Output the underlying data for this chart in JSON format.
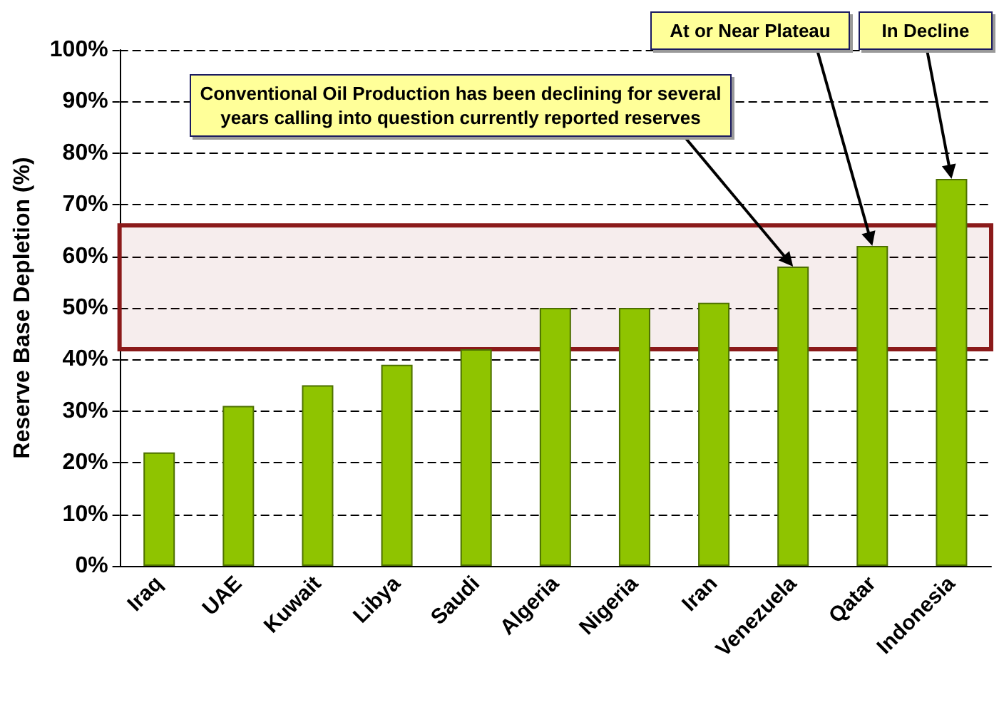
{
  "chart_data": {
    "type": "bar",
    "ylabel": "Reserve Base Depletion (%)",
    "categories": [
      "Iraq",
      "UAE",
      "Kuwait",
      "Libya",
      "Saudi",
      "Algeria",
      "Nigeria",
      "Iran",
      "Venezuela",
      "Qatar",
      "Indonesia"
    ],
    "values": [
      22,
      31,
      35,
      39,
      42,
      50,
      50,
      51,
      58,
      62,
      75
    ],
    "color": "#8fc400",
    "ylim": [
      0,
      100
    ],
    "yticks": [
      {
        "value": 0,
        "label": "0%"
      },
      {
        "value": 10,
        "label": "10%"
      },
      {
        "value": 20,
        "label": "20%"
      },
      {
        "value": 30,
        "label": "30%"
      },
      {
        "value": 40,
        "label": "40%"
      },
      {
        "value": 50,
        "label": "50%"
      },
      {
        "value": 60,
        "label": "60%"
      },
      {
        "value": 70,
        "label": "70%"
      },
      {
        "value": 80,
        "label": "80%"
      },
      {
        "value": 90,
        "label": "90%"
      },
      {
        "value": 100,
        "label": "100%"
      }
    ],
    "grid": "y",
    "bands": [
      {
        "axis": "y",
        "from": 42,
        "to": 66,
        "color": "#8b1a1a"
      }
    ],
    "annotations": [
      {
        "text": "Conventional Oil Production has been declining for several years calling into question currently reported reserves",
        "x": "Venezuela",
        "y": 58
      },
      {
        "text": "At or Near Plateau",
        "x": "Qatar",
        "y": 62
      },
      {
        "text": "In Decline",
        "x": "Indonesia",
        "y": 75
      }
    ]
  }
}
